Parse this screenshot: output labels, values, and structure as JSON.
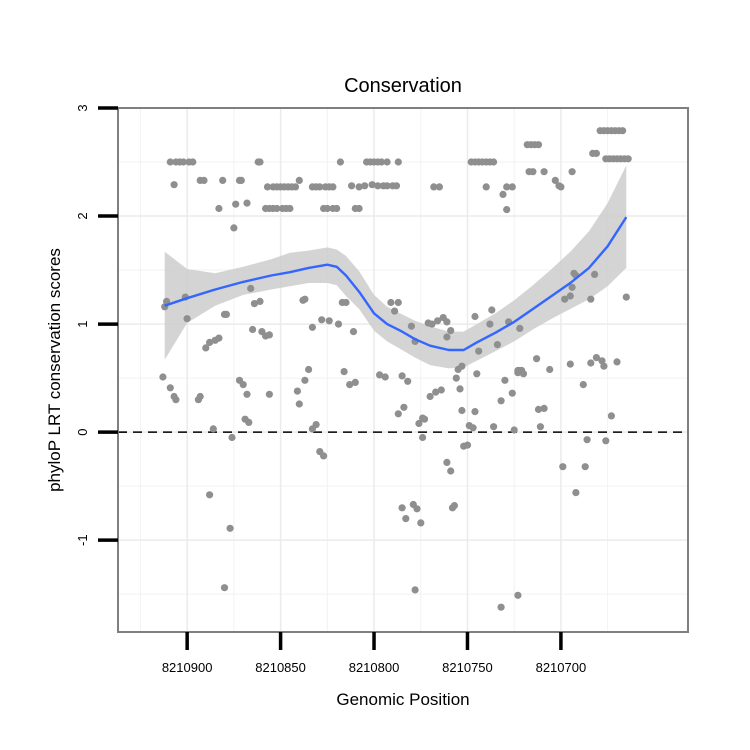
{
  "chart_data": {
    "type": "scatter",
    "title": "Conservation",
    "xlabel": "Genomic Position",
    "ylabel": "phyloP LRT conservation scores",
    "x_reversed": true,
    "xlim": [
      8210937,
      8210632
    ],
    "ylim": [
      -1.85,
      3.0
    ],
    "x_ticks": [
      8210900,
      8210850,
      8210800,
      8210750,
      8210700
    ],
    "y_ticks": [
      -1,
      0,
      1,
      2,
      3
    ],
    "reference_line": {
      "y": 0,
      "style": "dashed"
    },
    "grid": true,
    "colors": {
      "points": "#8f8f8f",
      "smooth": "#3366ff",
      "ribbon": "#cccccc",
      "panel_border": "#7f7f7f"
    },
    "series": [
      {
        "kind": "points",
        "points": [
          [
            8210912,
            1.16
          ],
          [
            8210911,
            1.21
          ],
          [
            8210909,
            2.5
          ],
          [
            8210906,
            2.5
          ],
          [
            8210904,
            2.5
          ],
          [
            8210902,
            2.5
          ],
          [
            8210899,
            2.5
          ],
          [
            8210897,
            2.5
          ],
          [
            8210893,
            2.33
          ],
          [
            8210891,
            2.33
          ],
          [
            8210907,
            2.29
          ],
          [
            8210913,
            0.51
          ],
          [
            8210909,
            0.41
          ],
          [
            8210907,
            0.33
          ],
          [
            8210906,
            0.3
          ],
          [
            8210901,
            1.25
          ],
          [
            8210900,
            1.05
          ],
          [
            8210894,
            0.3
          ],
          [
            8210893,
            0.33
          ],
          [
            8210890,
            0.78
          ],
          [
            8210888,
            0.83
          ],
          [
            8210886,
            0.03
          ],
          [
            8210888,
            -0.58
          ],
          [
            8210885,
            0.85
          ],
          [
            8210883,
            0.87
          ],
          [
            8210883,
            2.07
          ],
          [
            8210881,
            2.33
          ],
          [
            8210880,
            1.09
          ],
          [
            8210879,
            1.09
          ],
          [
            8210877,
            -0.89
          ],
          [
            8210876,
            -0.05
          ],
          [
            8210875,
            1.89
          ],
          [
            8210874,
            2.11
          ],
          [
            8210872,
            2.33
          ],
          [
            8210871,
            2.33
          ],
          [
            8210872,
            0.48
          ],
          [
            8210870,
            0.44
          ],
          [
            8210868,
            0.35
          ],
          [
            8210869,
            0.12
          ],
          [
            8210867,
            0.09
          ],
          [
            8210868,
            2.12
          ],
          [
            8210866,
            1.33
          ],
          [
            8210865,
            0.95
          ],
          [
            8210864,
            1.19
          ],
          [
            8210862,
            2.5
          ],
          [
            8210861,
            2.5
          ],
          [
            8210861,
            1.21
          ],
          [
            8210860,
            0.93
          ],
          [
            8210858,
            0.89
          ],
          [
            8210856,
            0.9
          ],
          [
            8210858,
            2.07
          ],
          [
            8210857,
            2.27
          ],
          [
            8210854,
            2.27
          ],
          [
            8210852,
            2.27
          ],
          [
            8210850,
            2.27
          ],
          [
            8210848,
            2.27
          ],
          [
            8210846,
            2.27
          ],
          [
            8210844,
            2.27
          ],
          [
            8210842,
            2.27
          ],
          [
            8210856,
            2.07
          ],
          [
            8210854,
            2.07
          ],
          [
            8210852,
            2.07
          ],
          [
            8210849,
            2.07
          ],
          [
            8210847,
            2.07
          ],
          [
            8210845,
            2.07
          ],
          [
            8210840,
            2.33
          ],
          [
            8210856,
            0.35
          ],
          [
            8210880,
            -1.44
          ],
          [
            8210841,
            0.38
          ],
          [
            8210840,
            0.26
          ],
          [
            8210838,
            1.22
          ],
          [
            8210837,
            1.23
          ],
          [
            8210837,
            0.48
          ],
          [
            8210835,
            0.58
          ],
          [
            8210833,
            0.03
          ],
          [
            8210831,
            0.07
          ],
          [
            8210833,
            0.97
          ],
          [
            8210828,
            1.04
          ],
          [
            8210829,
            -0.18
          ],
          [
            8210827,
            -0.22
          ],
          [
            8210833,
            2.27
          ],
          [
            8210831,
            2.27
          ],
          [
            8210829,
            2.27
          ],
          [
            8210826,
            2.27
          ],
          [
            8210824,
            2.27
          ],
          [
            8210822,
            2.27
          ],
          [
            8210827,
            2.07
          ],
          [
            8210825,
            2.07
          ],
          [
            8210822,
            2.07
          ],
          [
            8210820,
            2.07
          ],
          [
            8210818,
            2.5
          ],
          [
            8210824,
            1.03
          ],
          [
            8210819,
            1.0
          ],
          [
            8210817,
            1.2
          ],
          [
            8210816,
            0.56
          ],
          [
            8210815,
            1.2
          ],
          [
            8210813,
            0.44
          ],
          [
            8210812,
            2.28
          ],
          [
            8210810,
            2.07
          ],
          [
            8210808,
            2.07
          ],
          [
            8210805,
            2.28
          ],
          [
            8210811,
            0.93
          ],
          [
            8210810,
            0.46
          ],
          [
            8210808,
            2.27
          ],
          [
            8210804,
            2.5
          ],
          [
            8210802,
            2.5
          ],
          [
            8210800,
            2.5
          ],
          [
            8210798,
            2.5
          ],
          [
            8210796,
            2.5
          ],
          [
            8210793,
            2.5
          ],
          [
            8210801,
            2.29
          ],
          [
            8210798,
            2.28
          ],
          [
            8210795,
            2.28
          ],
          [
            8210793,
            2.28
          ],
          [
            8210790,
            2.28
          ],
          [
            8210788,
            2.28
          ],
          [
            8210787,
            2.5
          ],
          [
            8210797,
            0.53
          ],
          [
            8210794,
            0.51
          ],
          [
            8210791,
            1.2
          ],
          [
            8210789,
            1.12
          ],
          [
            8210787,
            1.2
          ],
          [
            8210787,
            0.17
          ],
          [
            8210785,
            -0.7
          ],
          [
            8210784,
            0.23
          ],
          [
            8210783,
            -0.8
          ],
          [
            8210785,
            0.52
          ],
          [
            8210782,
            0.47
          ],
          [
            8210780,
            0.98
          ],
          [
            8210778,
            0.84
          ],
          [
            8210778,
            -1.46
          ],
          [
            8210779,
            -0.67
          ],
          [
            8210777,
            -0.71
          ],
          [
            8210775,
            -0.84
          ],
          [
            8210776,
            0.08
          ],
          [
            8210774,
            0.13
          ],
          [
            8210773,
            0.12
          ],
          [
            8210774,
            -0.05
          ],
          [
            8210770,
            0.33
          ],
          [
            8210771,
            1.01
          ],
          [
            8210769,
            1.0
          ],
          [
            8210766,
            1.03
          ],
          [
            8210768,
            2.27
          ],
          [
            8210765,
            2.27
          ],
          [
            8210767,
            0.37
          ],
          [
            8210764,
            0.39
          ],
          [
            8210763,
            1.06
          ],
          [
            8210761,
            1.02
          ],
          [
            8210761,
            0.88
          ],
          [
            8210759,
            0.94
          ],
          [
            8210761,
            -0.28
          ],
          [
            8210759,
            -0.36
          ],
          [
            8210758,
            -0.7
          ],
          [
            8210757,
            -0.68
          ],
          [
            8210754,
            0.4
          ],
          [
            8210756,
            0.5
          ],
          [
            8210755,
            0.58
          ],
          [
            8210753,
            0.61
          ],
          [
            8210752,
            -0.13
          ],
          [
            8210750,
            -0.12
          ],
          [
            8210753,
            0.2
          ],
          [
            8210749,
            0.06
          ],
          [
            8210747,
            0.04
          ],
          [
            8210746,
            0.19
          ],
          [
            8210746,
            1.07
          ],
          [
            8210744,
            0.75
          ],
          [
            8210745,
            0.54
          ],
          [
            8210748,
            2.5
          ],
          [
            8210746,
            2.5
          ],
          [
            8210744,
            2.5
          ],
          [
            8210742,
            2.5
          ],
          [
            8210740,
            2.5
          ],
          [
            8210738,
            2.5
          ],
          [
            8210736,
            2.5
          ],
          [
            8210740,
            2.27
          ],
          [
            8210738,
            1.0
          ],
          [
            8210737,
            1.13
          ],
          [
            8210736,
            0.05
          ],
          [
            8210734,
            0.81
          ],
          [
            8210732,
            0.29
          ],
          [
            8210730,
            0.48
          ],
          [
            8210729,
            2.27
          ],
          [
            8210731,
            2.2
          ],
          [
            8210729,
            2.06
          ],
          [
            8210728,
            1.02
          ],
          [
            8210726,
            0.36
          ],
          [
            8210725,
            0.02
          ],
          [
            8210722,
            0.96
          ],
          [
            8210723,
            0.57
          ],
          [
            8210722,
            0.57
          ],
          [
            8210721,
            0.57
          ],
          [
            8210726,
            2.27
          ],
          [
            8210732,
            -1.62
          ],
          [
            8210723,
            -1.51
          ],
          [
            8210723,
            0.55
          ],
          [
            8210720,
            0.54
          ],
          [
            8210718,
            2.66
          ],
          [
            8210716,
            2.66
          ],
          [
            8210714,
            2.66
          ],
          [
            8210712,
            2.66
          ],
          [
            8210717,
            2.41
          ],
          [
            8210715,
            2.41
          ],
          [
            8210709,
            2.41
          ],
          [
            8210713,
            0.68
          ],
          [
            8210712,
            0.21
          ],
          [
            8210711,
            0.05
          ],
          [
            8210709,
            0.22
          ],
          [
            8210706,
            0.58
          ],
          [
            8210703,
            2.33
          ],
          [
            8210701,
            2.28
          ],
          [
            8210700,
            2.27
          ],
          [
            8210698,
            1.23
          ],
          [
            8210695,
            1.26
          ],
          [
            8210694,
            1.34
          ],
          [
            8210693,
            1.47
          ],
          [
            8210692,
            1.45
          ],
          [
            8210694,
            2.41
          ],
          [
            8210699,
            -0.32
          ],
          [
            8210695,
            0.63
          ],
          [
            8210692,
            -0.56
          ],
          [
            8210688,
            0.44
          ],
          [
            8210687,
            -0.32
          ],
          [
            8210686,
            -0.07
          ],
          [
            8210684,
            1.23
          ],
          [
            8210684,
            0.64
          ],
          [
            8210682,
            1.46
          ],
          [
            8210681,
            0.69
          ],
          [
            8210678,
            0.66
          ],
          [
            8210677,
            0.61
          ],
          [
            8210676,
            -0.08
          ],
          [
            8210683,
            2.58
          ],
          [
            8210681,
            2.58
          ],
          [
            8210679,
            2.79
          ],
          [
            8210677,
            2.79
          ],
          [
            8210675,
            2.79
          ],
          [
            8210673,
            2.79
          ],
          [
            8210671,
            2.79
          ],
          [
            8210669,
            2.79
          ],
          [
            8210667,
            2.79
          ],
          [
            8210676,
            2.53
          ],
          [
            8210674,
            2.53
          ],
          [
            8210672,
            2.53
          ],
          [
            8210670,
            2.53
          ],
          [
            8210668,
            2.53
          ],
          [
            8210666,
            2.53
          ],
          [
            8210664,
            2.53
          ],
          [
            8210673,
            0.15
          ],
          [
            8210670,
            0.65
          ],
          [
            8210665,
            1.25
          ]
        ]
      },
      {
        "kind": "smooth",
        "x": [
          8210912,
          8210900,
          8210885,
          8210870,
          8210855,
          8210845,
          8210835,
          8210825,
          8210820,
          8210815,
          8210808,
          8210800,
          8210793,
          8210785,
          8210778,
          8210770,
          8210760,
          8210752,
          8210745,
          8210735,
          8210725,
          8210715,
          8210705,
          8210695,
          8210685,
          8210675,
          8210665
        ],
        "y": [
          1.17,
          1.24,
          1.32,
          1.39,
          1.45,
          1.48,
          1.52,
          1.55,
          1.53,
          1.45,
          1.3,
          1.1,
          1.0,
          0.93,
          0.86,
          0.8,
          0.76,
          0.76,
          0.83,
          0.92,
          1.02,
          1.14,
          1.26,
          1.38,
          1.52,
          1.72,
          1.99
        ],
        "lower": [
          0.67,
          1.01,
          1.17,
          1.27,
          1.32,
          1.35,
          1.38,
          1.38,
          1.36,
          1.26,
          1.14,
          0.94,
          0.84,
          0.76,
          0.69,
          0.62,
          0.59,
          0.6,
          0.66,
          0.75,
          0.84,
          0.95,
          1.05,
          1.14,
          1.23,
          1.35,
          1.52
        ],
        "upper": [
          1.67,
          1.51,
          1.47,
          1.53,
          1.6,
          1.66,
          1.68,
          1.71,
          1.69,
          1.63,
          1.49,
          1.27,
          1.16,
          1.09,
          1.03,
          0.98,
          0.93,
          0.93,
          1.0,
          1.1,
          1.22,
          1.36,
          1.51,
          1.67,
          1.86,
          2.12,
          2.47
        ]
      }
    ]
  }
}
